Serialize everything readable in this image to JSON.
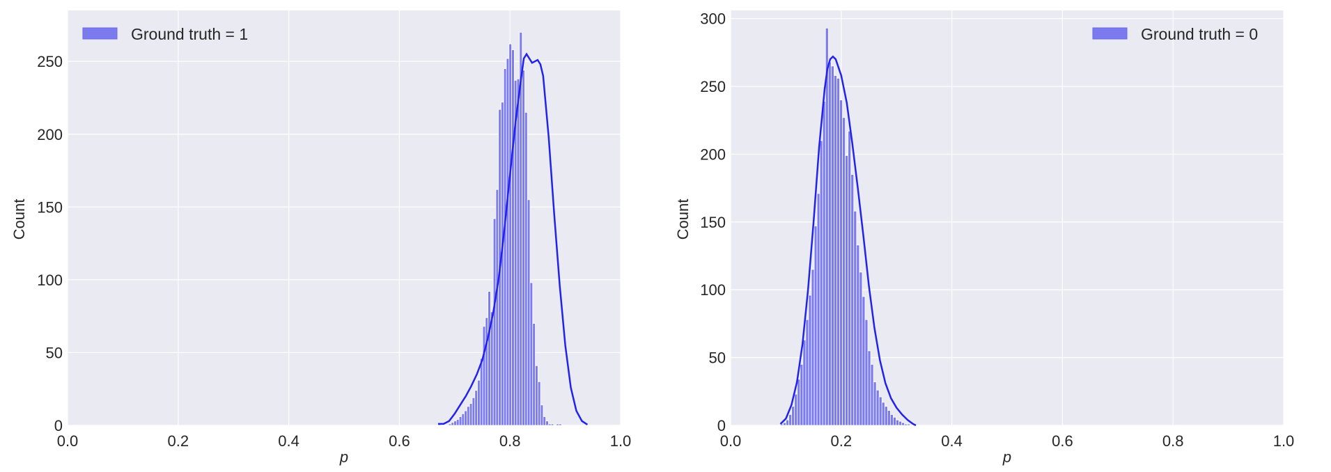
{
  "chart_data": [
    {
      "type": "bar",
      "subtype": "histogram-with-kde",
      "xlabel": "p",
      "ylabel": "Count",
      "xlim": [
        0.0,
        1.0
      ],
      "ylim": [
        0,
        285
      ],
      "xticks": [
        "0.0",
        "0.2",
        "0.4",
        "0.6",
        "0.8",
        "1.0"
      ],
      "yticks": [
        "0",
        "50",
        "100",
        "150",
        "200",
        "250"
      ],
      "grid": true,
      "legend_position": "top-left",
      "series": [
        {
          "name": "Ground truth = 1"
        }
      ],
      "bin_start": 0.67,
      "bin_width": 0.00475,
      "values": [
        1,
        0,
        0,
        0,
        1,
        2,
        3,
        4,
        6,
        8,
        10,
        13,
        15,
        19,
        24,
        31,
        46,
        68,
        74,
        92,
        78,
        142,
        162,
        217,
        222,
        245,
        252,
        262,
        258,
        237,
        238,
        270,
        244,
        215,
        155,
        98,
        70,
        41,
        30,
        14,
        6,
        3,
        1,
        1,
        0,
        1,
        1
      ],
      "kde": [
        [
          0.67,
          1
        ],
        [
          0.68,
          1
        ],
        [
          0.69,
          3
        ],
        [
          0.7,
          8
        ],
        [
          0.71,
          14
        ],
        [
          0.72,
          20
        ],
        [
          0.73,
          27
        ],
        [
          0.74,
          35
        ],
        [
          0.75,
          45
        ],
        [
          0.76,
          60
        ],
        [
          0.77,
          78
        ],
        [
          0.78,
          102
        ],
        [
          0.79,
          135
        ],
        [
          0.8,
          172
        ],
        [
          0.81,
          208
        ],
        [
          0.82,
          238
        ],
        [
          0.825,
          252
        ],
        [
          0.83,
          255
        ],
        [
          0.835,
          252
        ],
        [
          0.84,
          249
        ],
        [
          0.845,
          250
        ],
        [
          0.85,
          251
        ],
        [
          0.855,
          248
        ],
        [
          0.86,
          240
        ],
        [
          0.87,
          198
        ],
        [
          0.88,
          145
        ],
        [
          0.89,
          96
        ],
        [
          0.9,
          55
        ],
        [
          0.91,
          26
        ],
        [
          0.92,
          10
        ],
        [
          0.93,
          3
        ],
        [
          0.94,
          0.5
        ]
      ]
    },
    {
      "type": "bar",
      "subtype": "histogram-with-kde",
      "xlabel": "p",
      "ylabel": "Count",
      "xlim": [
        0.0,
        1.0
      ],
      "ylim": [
        0,
        306
      ],
      "xticks": [
        "0.0",
        "0.2",
        "0.4",
        "0.6",
        "0.8",
        "1.0"
      ],
      "yticks": [
        "0",
        "50",
        "100",
        "150",
        "200",
        "250",
        "300"
      ],
      "grid": true,
      "legend_position": "top-right",
      "series": [
        {
          "name": "Ground truth = 0"
        }
      ],
      "bin_start": 0.09,
      "bin_width": 0.0051,
      "values": [
        1,
        2,
        4,
        8,
        14,
        23,
        34,
        45,
        63,
        78,
        96,
        115,
        147,
        171,
        210,
        239,
        293,
        268,
        265,
        258,
        256,
        240,
        227,
        199,
        217,
        185,
        158,
        133,
        113,
        95,
        78,
        55,
        45,
        32,
        26,
        21,
        17,
        14,
        11,
        8,
        6,
        4,
        3,
        2,
        1,
        1,
        0,
        0
      ],
      "kde": [
        [
          0.09,
          1
        ],
        [
          0.1,
          5
        ],
        [
          0.11,
          15
        ],
        [
          0.12,
          32
        ],
        [
          0.13,
          60
        ],
        [
          0.14,
          100
        ],
        [
          0.15,
          150
        ],
        [
          0.16,
          205
        ],
        [
          0.17,
          248
        ],
        [
          0.175,
          263
        ],
        [
          0.18,
          270
        ],
        [
          0.185,
          272
        ],
        [
          0.19,
          270
        ],
        [
          0.2,
          258
        ],
        [
          0.21,
          238
        ],
        [
          0.22,
          208
        ],
        [
          0.23,
          175
        ],
        [
          0.24,
          140
        ],
        [
          0.25,
          103
        ],
        [
          0.26,
          72
        ],
        [
          0.27,
          48
        ],
        [
          0.28,
          31
        ],
        [
          0.29,
          20
        ],
        [
          0.3,
          13
        ],
        [
          0.31,
          8
        ],
        [
          0.32,
          4
        ],
        [
          0.33,
          1
        ],
        [
          0.335,
          0
        ]
      ]
    }
  ]
}
